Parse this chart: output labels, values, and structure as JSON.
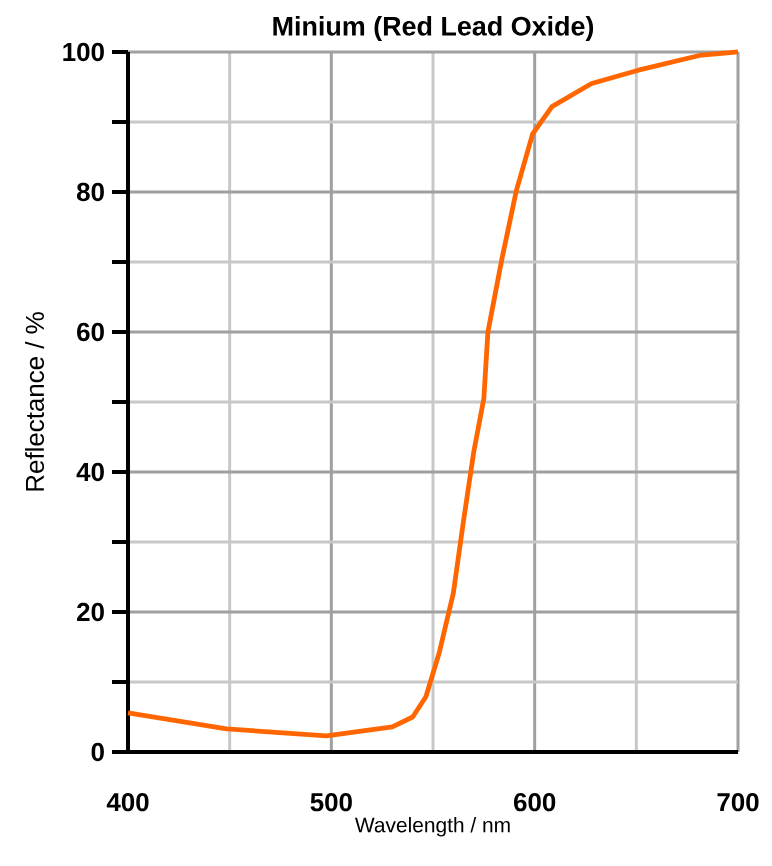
{
  "chart_data": {
    "type": "line",
    "title": "Minium (Red Lead Oxide)",
    "xlabel": "Wavelength / nm",
    "ylabel": "Reflectance / %",
    "x": [
      400,
      448.5,
      497.6,
      530,
      540,
      546.5,
      553,
      560,
      565,
      570,
      575,
      577,
      584,
      591,
      599,
      608.5,
      628,
      651,
      681,
      700
    ],
    "series": [
      {
        "color": "#ff6600",
        "values": [
          5.6,
          3.3,
          2.3,
          3.6,
          5,
          7.9,
          14.1,
          22.7,
          33,
          42.8,
          50.5,
          60,
          70.6,
          80.2,
          88.3,
          92.2,
          95.5,
          97.4,
          99.5,
          100
        ]
      }
    ],
    "xlim": [
      400,
      700
    ],
    "ylim": [
      0,
      100
    ],
    "xticks": [
      400,
      500,
      600,
      700
    ],
    "yticks": [
      0,
      20,
      40,
      60,
      80,
      100
    ],
    "grid": true,
    "marker": "none",
    "line_style": "solid"
  }
}
